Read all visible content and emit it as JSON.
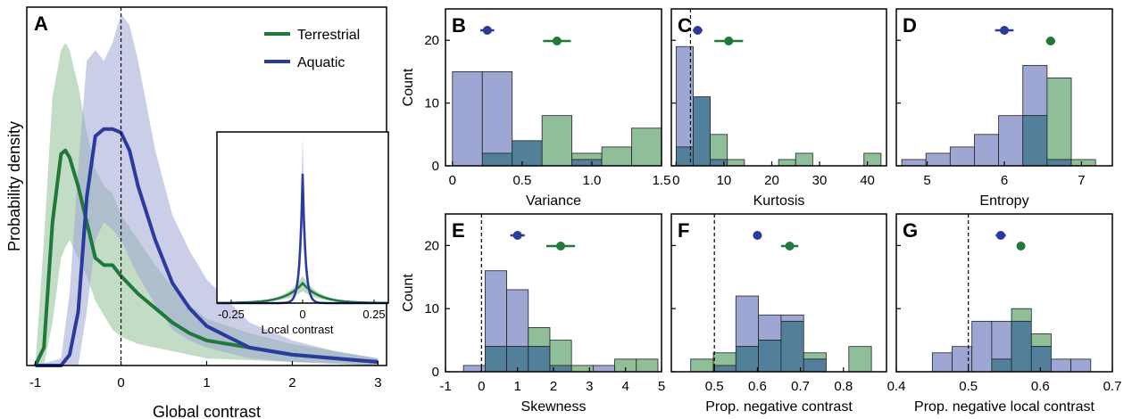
{
  "colors": {
    "terrestrial": "#1f7a3a",
    "aquatic": "#2a3a9f",
    "terrestrial_fill": "#8fbf98",
    "aquatic_fill": "#9ea6d4",
    "overlap_fill": "#52809a"
  },
  "chart_data": [
    {
      "panel": "A",
      "type": "line",
      "xlabel": "Global contrast",
      "ylabel": "Probability density",
      "xlim": [
        -1.1,
        3.1
      ],
      "ylim": [
        0,
        1.0
      ],
      "xticks": [
        -1,
        0,
        1,
        2,
        3
      ],
      "vline": 0,
      "legend": "top-right",
      "series": [
        {
          "name": "Terrestrial",
          "x": [
            -1.0,
            -0.9,
            -0.8,
            -0.7,
            -0.65,
            -0.6,
            -0.5,
            -0.4,
            -0.3,
            -0.2,
            -0.1,
            0.0,
            0.2,
            0.4,
            0.6,
            0.8,
            1.0,
            1.5,
            2.0,
            2.5,
            3.0
          ],
          "y": [
            0.0,
            0.05,
            0.4,
            0.59,
            0.6,
            0.58,
            0.5,
            0.4,
            0.3,
            0.28,
            0.28,
            0.25,
            0.2,
            0.16,
            0.12,
            0.09,
            0.07,
            0.05,
            0.03,
            0.02,
            0.01
          ],
          "lower": [
            0.0,
            0.0,
            0.12,
            0.3,
            0.33,
            0.35,
            0.3,
            0.25,
            0.18,
            0.14,
            0.1,
            0.08,
            0.06,
            0.05,
            0.04,
            0.03,
            0.02,
            0.015,
            0.01,
            0.005,
            0.0
          ],
          "upper": [
            0.0,
            0.35,
            0.75,
            0.88,
            0.9,
            0.88,
            0.78,
            0.65,
            0.55,
            0.5,
            0.48,
            0.42,
            0.35,
            0.28,
            0.22,
            0.17,
            0.13,
            0.09,
            0.06,
            0.04,
            0.02
          ]
        },
        {
          "name": "Aquatic",
          "x": [
            -1.0,
            -0.7,
            -0.6,
            -0.5,
            -0.4,
            -0.3,
            -0.2,
            -0.1,
            0.0,
            0.1,
            0.2,
            0.4,
            0.6,
            0.8,
            1.0,
            1.5,
            2.0,
            2.5,
            3.0
          ],
          "y": [
            0.0,
            0.0,
            0.03,
            0.15,
            0.47,
            0.64,
            0.66,
            0.66,
            0.65,
            0.6,
            0.5,
            0.35,
            0.23,
            0.16,
            0.11,
            0.05,
            0.03,
            0.02,
            0.01
          ],
          "lower": [
            0.0,
            0.0,
            0.0,
            0.0,
            0.15,
            0.35,
            0.4,
            0.38,
            0.35,
            0.3,
            0.25,
            0.17,
            0.1,
            0.07,
            0.05,
            0.02,
            0.01,
            0.005,
            0.0
          ],
          "upper": [
            0.0,
            0.02,
            0.2,
            0.55,
            0.85,
            0.88,
            0.85,
            0.9,
            0.98,
            0.95,
            0.85,
            0.6,
            0.42,
            0.32,
            0.24,
            0.12,
            0.07,
            0.04,
            0.02
          ]
        }
      ],
      "inset": {
        "xlabel": "Local contrast",
        "xlim": [
          -0.3,
          0.3
        ],
        "xticks": [
          -0.25,
          0,
          0.25
        ],
        "xticklabels": [
          "-0.25",
          "0",
          "0.25"
        ],
        "series": [
          {
            "name": "Terrestrial",
            "peak": 0.12,
            "width": 0.06
          },
          {
            "name": "Aquatic",
            "peak": 0.78,
            "width": 0.01
          }
        ]
      }
    },
    {
      "panel": "B",
      "type": "bar",
      "xlabel": "Variance",
      "ylabel": "Count",
      "xlim": [
        -0.05,
        1.5
      ],
      "ylim": [
        0,
        25
      ],
      "xticks": [
        0,
        0.5,
        1,
        1.5
      ],
      "xticklabels": [
        "0",
        "0.5",
        "1.0",
        "1.5"
      ],
      "yticks": [
        0,
        10,
        20
      ],
      "bins": [
        0,
        0.2143,
        0.4286,
        0.6429,
        0.8571,
        1.0714,
        1.2857,
        1.5
      ],
      "series": [
        {
          "name": "Aquatic",
          "counts": [
            15,
            15,
            4,
            0,
            1,
            0,
            0
          ]
        },
        {
          "name": "Terrestrial",
          "counts": [
            0,
            2,
            4,
            8,
            2,
            3,
            6
          ]
        }
      ],
      "means": [
        {
          "series": "Aquatic",
          "mean": 0.25,
          "lo": 0.2,
          "hi": 0.3
        },
        {
          "series": "Terrestrial",
          "mean": 0.75,
          "lo": 0.65,
          "hi": 0.85
        }
      ]
    },
    {
      "panel": "C",
      "type": "bar",
      "xlabel": "Kurtosis",
      "ylabel": "",
      "xlim": [
        -1,
        44
      ],
      "ylim": [
        0,
        25
      ],
      "xticks": [
        0,
        10,
        20,
        30,
        40
      ],
      "xticklabels": [
        "0",
        "10",
        "20",
        "30",
        "40"
      ],
      "yticks": [
        0,
        10,
        20
      ],
      "vline": 3,
      "bins": [
        0,
        3.571,
        7.143,
        10.714,
        14.286,
        17.857,
        21.429,
        25,
        28.571,
        32.143,
        35.714,
        39.286,
        42.857
      ],
      "series": [
        {
          "name": "Aquatic",
          "counts": [
            19,
            11,
            1,
            0,
            0,
            0,
            0,
            0,
            0,
            0,
            0,
            0
          ]
        },
        {
          "name": "Terrestrial",
          "counts": [
            3,
            11,
            5,
            1,
            0,
            0,
            1,
            2,
            0,
            0,
            0,
            2
          ]
        }
      ],
      "means": [
        {
          "series": "Aquatic",
          "mean": 4.5,
          "lo": 3.5,
          "hi": 5.5
        },
        {
          "series": "Terrestrial",
          "mean": 11,
          "lo": 8,
          "hi": 14
        }
      ]
    },
    {
      "panel": "D",
      "type": "bar",
      "xlabel": "Entropy",
      "ylabel": "",
      "xlim": [
        4.6,
        7.4
      ],
      "ylim": [
        0,
        25
      ],
      "xticks": [
        5,
        6,
        7
      ],
      "xticklabels": [
        "5",
        "6",
        "7"
      ],
      "yticks": [
        0,
        10,
        20
      ],
      "bins": [
        4.67,
        4.984,
        5.298,
        5.612,
        5.926,
        6.24,
        6.554,
        6.868,
        7.182
      ],
      "series": [
        {
          "name": "Aquatic",
          "counts": [
            1,
            2,
            3,
            5,
            8,
            16,
            1,
            0
          ]
        },
        {
          "name": "Terrestrial",
          "counts": [
            0,
            0,
            0,
            0,
            0,
            8,
            14,
            1
          ]
        }
      ],
      "means": [
        {
          "series": "Aquatic",
          "mean": 6.0,
          "lo": 5.88,
          "hi": 6.12
        },
        {
          "series": "Terrestrial",
          "mean": 6.6,
          "lo": 6.54,
          "hi": 6.66
        }
      ]
    },
    {
      "panel": "E",
      "type": "bar",
      "xlabel": "Skewness",
      "ylabel": "Count",
      "xlim": [
        -1,
        5
      ],
      "ylim": [
        0,
        25
      ],
      "xticks": [
        -1,
        0,
        1,
        2,
        3,
        4,
        5
      ],
      "xticklabels": [
        "-1",
        "0",
        "1",
        "2",
        "3",
        "4",
        "5"
      ],
      "yticks": [
        0,
        10,
        20
      ],
      "vline": 0,
      "bins": [
        -0.5,
        0.1,
        0.7,
        1.3,
        1.9,
        2.5,
        3.1,
        3.7,
        4.3,
        4.9
      ],
      "series": [
        {
          "name": "Aquatic",
          "counts": [
            1,
            16,
            13,
            4,
            1,
            0,
            1,
            0,
            0
          ]
        },
        {
          "name": "Terrestrial",
          "counts": [
            0,
            4,
            4,
            7,
            5,
            1,
            0,
            2,
            2
          ]
        }
      ],
      "means": [
        {
          "series": "Aquatic",
          "mean": 1.0,
          "lo": 0.8,
          "hi": 1.2
        },
        {
          "series": "Terrestrial",
          "mean": 2.2,
          "lo": 1.8,
          "hi": 2.6
        }
      ]
    },
    {
      "panel": "F",
      "type": "bar",
      "xlabel": "Prop. negative contrast",
      "ylabel": "",
      "xlim": [
        0.4,
        0.9
      ],
      "ylim": [
        0,
        25
      ],
      "xticks": [
        0.5,
        0.6,
        0.7,
        0.8
      ],
      "xticklabels": [
        "0.5",
        "0.6",
        "0.7",
        "0.8"
      ],
      "yticks": [
        0,
        10,
        20
      ],
      "vline": 0.5,
      "bins": [
        0.445,
        0.4975,
        0.55,
        0.6025,
        0.655,
        0.7075,
        0.76,
        0.8125,
        0.865
      ],
      "series": [
        {
          "name": "Aquatic",
          "counts": [
            0,
            1,
            12,
            9,
            9,
            2,
            0,
            0
          ]
        },
        {
          "name": "Terrestrial",
          "counts": [
            2,
            3,
            4,
            5,
            8,
            3,
            0,
            4
          ]
        }
      ],
      "means": [
        {
          "series": "Aquatic",
          "mean": 0.6,
          "lo": 0.59,
          "hi": 0.61
        },
        {
          "series": "Terrestrial",
          "mean": 0.675,
          "lo": 0.655,
          "hi": 0.695
        }
      ]
    },
    {
      "panel": "G",
      "type": "bar",
      "xlabel": "Prop. negative local contrast",
      "ylabel": "",
      "xlim": [
        0.4,
        0.7
      ],
      "ylim": [
        0,
        25
      ],
      "xticks": [
        0.4,
        0.5,
        0.6,
        0.7
      ],
      "xticklabels": [
        "0.4",
        "0.5",
        "0.6",
        "0.7"
      ],
      "yticks": [
        0,
        10,
        20
      ],
      "vline": 0.5,
      "bins": [
        0.45,
        0.4775,
        0.505,
        0.5325,
        0.56,
        0.5875,
        0.615,
        0.6425,
        0.67
      ],
      "series": [
        {
          "name": "Aquatic",
          "counts": [
            3,
            4,
            8,
            8,
            8,
            4,
            2,
            2
          ]
        },
        {
          "name": "Terrestrial",
          "counts": [
            0,
            0,
            0,
            2,
            10,
            6,
            0,
            0
          ]
        }
      ],
      "means": [
        {
          "series": "Aquatic",
          "mean": 0.545,
          "lo": 0.538,
          "hi": 0.552
        },
        {
          "series": "Terrestrial",
          "mean": 0.573,
          "lo": 0.568,
          "hi": 0.578
        }
      ]
    }
  ]
}
